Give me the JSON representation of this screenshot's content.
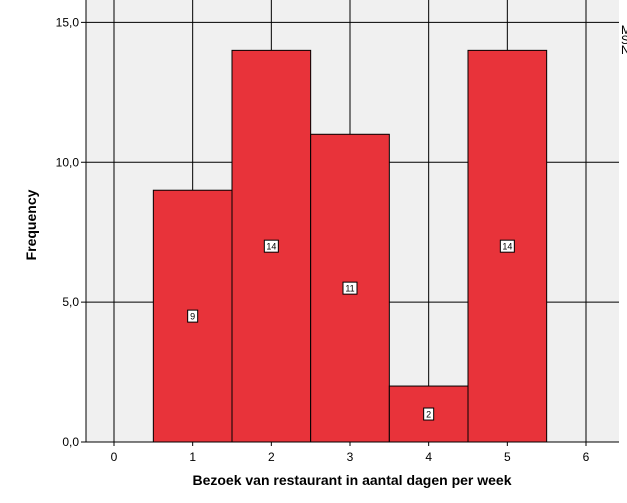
{
  "chart_data": {
    "type": "bar",
    "xlabel": "Bezoek van restaurant in aantal dagen per week",
    "ylabel": "Frequency",
    "categories": [
      "1",
      "2",
      "3",
      "4",
      "5"
    ],
    "values": [
      9,
      14,
      11,
      2,
      14
    ],
    "x_ticks": [
      "0",
      "1",
      "2",
      "3",
      "4",
      "5",
      "6"
    ],
    "y_ticks": [
      "0,0",
      "5,0",
      "10,0",
      "15,0"
    ],
    "xlim": [
      0,
      6
    ],
    "ylim": [
      0,
      15.8
    ],
    "grid": true,
    "legend_partial_text": "M\nS\nN",
    "colors": {
      "bar": "#e8333a",
      "plot_background": "#f0f0f0",
      "grid": "#000000"
    }
  }
}
